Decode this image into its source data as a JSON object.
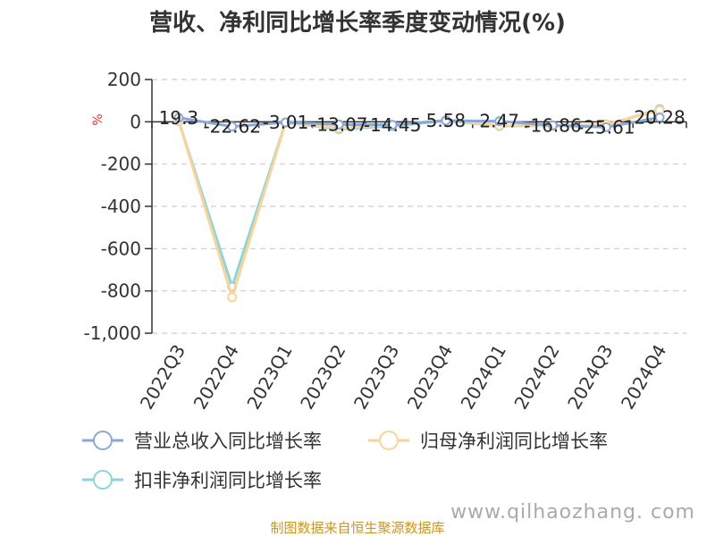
{
  "chart_data": {
    "type": "line",
    "title": "营收、净利同比增长率季度变动情况(%)",
    "y_unit": "%",
    "categories": [
      "2022Q3",
      "2022Q4",
      "2023Q1",
      "2023Q2",
      "2023Q3",
      "2023Q4",
      "2024Q1",
      "2024Q2",
      "2024Q3",
      "2024Q4"
    ],
    "ylim": [
      -1000,
      200
    ],
    "yticks": [
      200,
      0,
      -200,
      -400,
      -600,
      -800,
      -1000
    ],
    "ytick_labels": [
      "200",
      "0",
      "-200",
      "-400",
      "-600",
      "-800",
      "-1,000"
    ],
    "grid": true,
    "legend_position": "bottom",
    "series": [
      {
        "name": "营业总收入同比增长率",
        "color": "#8aa8d8",
        "values": [
          19.3,
          -22.62,
          -3.01,
          -13.07,
          -14.45,
          5.58,
          2.47,
          -16.86,
          -25.61,
          20.28
        ]
      },
      {
        "name": "归母净利润同比增长率",
        "color": "#f8d49a",
        "values": [
          5,
          -830,
          -5,
          -30,
          -15,
          8,
          -18,
          -20,
          -12,
          55
        ]
      },
      {
        "name": "扣非净利润同比增长率",
        "color": "#8dd4d8",
        "values": [
          3,
          -780,
          -3,
          -35,
          -20,
          5,
          -20,
          -18,
          -15,
          60
        ]
      }
    ],
    "data_labels": [
      "19.3",
      "-22.62",
      "-3.01",
      "-13.07",
      "-14.45",
      "5.58",
      "2.47",
      "-16.86",
      "-25.61",
      "20.28"
    ]
  },
  "footer": {
    "source": "制图数据来自恒生聚源数据库",
    "watermark": "www.qilhaozhang. com"
  }
}
